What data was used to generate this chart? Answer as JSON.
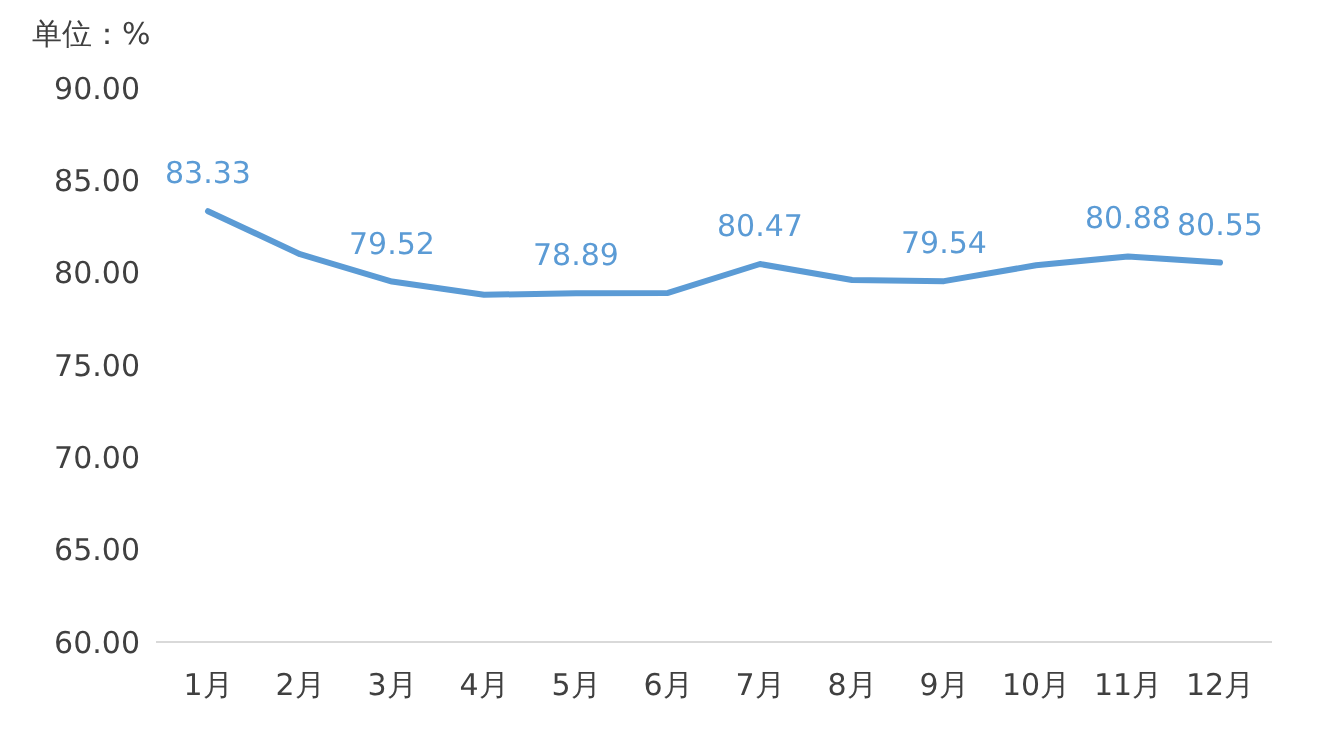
{
  "chart_data": {
    "type": "line",
    "ylabel": "单位：%",
    "categories": [
      "1月",
      "2月",
      "3月",
      "4月",
      "5月",
      "6月",
      "7月",
      "8月",
      "9月",
      "10月",
      "11月",
      "12月"
    ],
    "values": [
      83.33,
      81.0,
      79.52,
      78.8,
      78.89,
      78.9,
      80.47,
      79.6,
      79.54,
      80.4,
      80.88,
      80.55
    ],
    "value_labels": [
      "83.33",
      null,
      "79.52",
      null,
      "78.89",
      null,
      "80.47",
      null,
      "79.54",
      null,
      "80.88",
      "80.55"
    ],
    "color": "#5b9bd5",
    "ylim": [
      60,
      90
    ],
    "yticks": [
      {
        "value": 60,
        "label": "60.00"
      },
      {
        "value": 65,
        "label": "65.00"
      },
      {
        "value": 70,
        "label": "70.00"
      },
      {
        "value": 75,
        "label": "75.00"
      },
      {
        "value": 80,
        "label": "80.00"
      },
      {
        "value": 85,
        "label": "85.00"
      },
      {
        "value": 90,
        "label": "90.00"
      }
    ],
    "grid": false,
    "legend": false,
    "marker": "none",
    "line_style": "solid"
  }
}
